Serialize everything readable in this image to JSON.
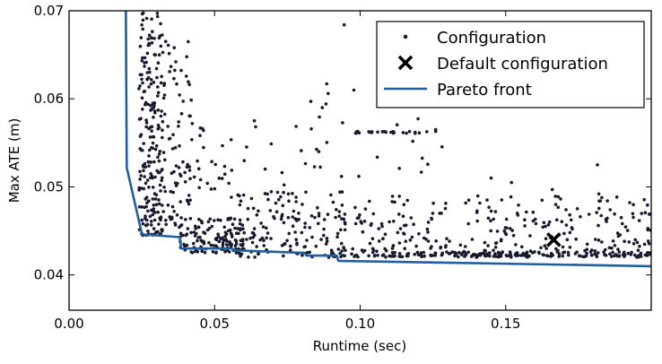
{
  "chart_data": {
    "type": "scatter",
    "title": "",
    "xlabel": "Runtime (sec)",
    "ylabel": "Max ATE (m)",
    "xlim": [
      0.0,
      0.2
    ],
    "ylim": [
      0.036,
      0.07
    ],
    "xticks": [
      0.0,
      0.05,
      0.1,
      0.15
    ],
    "xtick_labels": [
      "0.00",
      "0.05",
      "0.10",
      "0.15"
    ],
    "yticks": [
      0.04,
      0.05,
      0.06,
      0.07
    ],
    "ytick_labels": [
      "0.04",
      "0.05",
      "0.06",
      "0.07"
    ],
    "grid": false,
    "legend_position": "top-right",
    "series": [
      {
        "name": "Configuration",
        "kind": "scatter",
        "marker": "dot",
        "color": "#1a1a2e",
        "clusters": [
          {
            "x_range": [
              0.024,
              0.032
            ],
            "y_range": [
              0.0445,
              0.07
            ],
            "count": 210
          },
          {
            "x_range": [
              0.032,
              0.042
            ],
            "y_range": [
              0.0445,
              0.067
            ],
            "count": 90
          },
          {
            "x_range": [
              0.038,
              0.06
            ],
            "y_range": [
              0.0425,
              0.0465
            ],
            "count": 120
          },
          {
            "x_range": [
              0.042,
              0.056
            ],
            "y_range": [
              0.0495,
              0.0575
            ],
            "count": 25
          },
          {
            "x_range": [
              0.055,
              0.095
            ],
            "y_range": [
              0.042,
              0.0495
            ],
            "count": 150
          },
          {
            "x_range": [
              0.06,
              0.09
            ],
            "y_range": [
              0.05,
              0.06
            ],
            "count": 20
          },
          {
            "x_range": [
              0.09,
              0.2
            ],
            "y_range": [
              0.042,
              0.049
            ],
            "count": 290
          },
          {
            "x_range": [
              0.093,
              0.13
            ],
            "y_range": [
              0.0495,
              0.069
            ],
            "count": 20
          }
        ],
        "bands": [
          {
            "x_range": [
              0.098,
              0.126
            ],
            "y": 0.0562,
            "count": 26
          },
          {
            "x_range": [
              0.09,
              0.2
            ],
            "y": 0.0422,
            "count": 100
          },
          {
            "x_range": [
              0.11,
              0.2
            ],
            "y": 0.0425,
            "count": 60
          }
        ],
        "points": [
          {
            "x": 0.0945,
            "y": 0.0684
          },
          {
            "x": 0.0885,
            "y": 0.0617
          },
          {
            "x": 0.089,
            "y": 0.0606
          },
          {
            "x": 0.087,
            "y": 0.059
          },
          {
            "x": 0.1815,
            "y": 0.0525
          },
          {
            "x": 0.182,
            "y": 0.0492
          },
          {
            "x": 0.166,
            "y": 0.0497
          },
          {
            "x": 0.152,
            "y": 0.0505
          },
          {
            "x": 0.145,
            "y": 0.051
          }
        ]
      },
      {
        "name": "Default configuration",
        "kind": "marker",
        "marker": "x",
        "color": "#000000",
        "x": 0.1665,
        "y": 0.044
      },
      {
        "name": "Pareto front",
        "kind": "line",
        "color": "#1f5fa0",
        "x": [
          0.0195,
          0.0198,
          0.025,
          0.0255,
          0.038,
          0.0385,
          0.056,
          0.0565,
          0.081,
          0.0815,
          0.092,
          0.0925,
          0.2
        ],
        "y": [
          0.07,
          0.0522,
          0.0447,
          0.0446,
          0.0443,
          0.043,
          0.043,
          0.0428,
          0.0425,
          0.0422,
          0.0422,
          0.0416,
          0.041
        ]
      }
    ]
  }
}
